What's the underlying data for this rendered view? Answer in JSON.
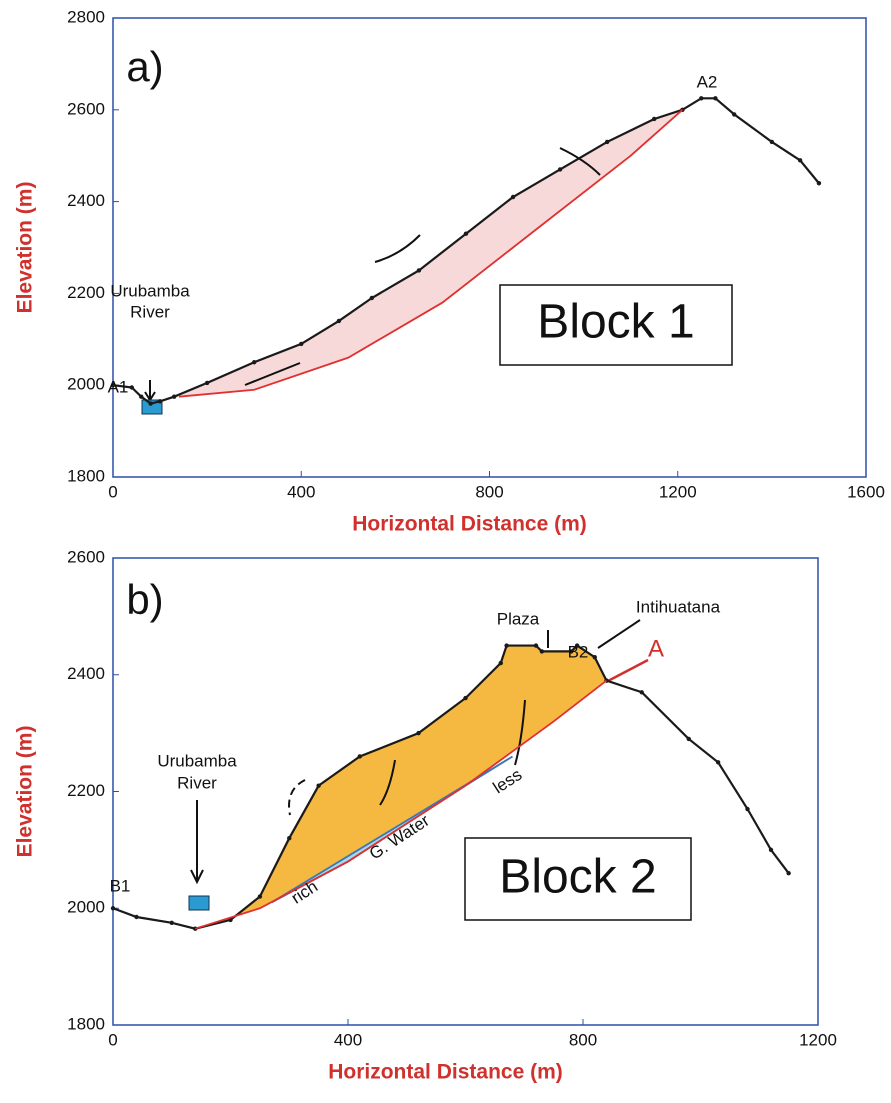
{
  "chart_data": [
    {
      "type": "line",
      "xlabel": "Horizontal Distance (m)",
      "ylabel": "Elevation (m)",
      "xlim": [
        0,
        1600
      ],
      "ylim": [
        1800,
        2800
      ],
      "xticks": [
        0,
        400,
        800,
        1200,
        1600
      ],
      "yticks": [
        1800,
        2000,
        2200,
        2400,
        2600,
        2800
      ],
      "fill_color": "#f7d9d9",
      "series": [
        {
          "color": "#1a1a1a",
          "x": [
            0,
            40,
            60,
            80,
            100,
            130,
            200,
            300,
            400,
            480,
            550,
            650,
            750,
            850,
            950,
            1050,
            1150,
            1210,
            1250,
            1280,
            1320,
            1400,
            1460,
            1500
          ],
          "values": [
            2000,
            1995,
            1975,
            1960,
            1965,
            1975,
            2005,
            2050,
            2090,
            2140,
            2190,
            2250,
            2330,
            2410,
            2470,
            2530,
            2580,
            2600,
            2625,
            2625,
            2590,
            2530,
            2490,
            2440
          ]
        },
        {
          "color": "#e03030",
          "x": [
            140,
            300,
            500,
            700,
            900,
            1100,
            1210
          ],
          "values": [
            1975,
            1990,
            2060,
            2180,
            2340,
            2500,
            2600
          ]
        }
      ],
      "annotations": [
        "a)",
        "A1",
        "A2",
        "Urubamba",
        "River",
        "Block 1"
      ]
    },
    {
      "type": "line",
      "xlabel": "Horizontal Distance (m)",
      "ylabel": "Elevation (m)",
      "xlim": [
        0,
        1200
      ],
      "ylim": [
        1800,
        2600
      ],
      "xticks": [
        0,
        400,
        800,
        1200
      ],
      "yticks": [
        1800,
        2000,
        2200,
        2400,
        2600
      ],
      "fill_color": "#f5b942",
      "series": [
        {
          "color": "#1a1a1a",
          "x": [
            0,
            40,
            100,
            140,
            200,
            250,
            300,
            350,
            420,
            520,
            600,
            660,
            670,
            720,
            730,
            780,
            790,
            820,
            840,
            900,
            980,
            1030,
            1080,
            1120,
            1150
          ],
          "values": [
            2000,
            1985,
            1975,
            1965,
            1980,
            2020,
            2120,
            2210,
            2260,
            2300,
            2360,
            2420,
            2450,
            2450,
            2440,
            2440,
            2450,
            2430,
            2390,
            2370,
            2290,
            2250,
            2170,
            2100,
            2060
          ]
        },
        {
          "color": "#e03030",
          "x": [
            140,
            250,
            400,
            600,
            750,
            840
          ],
          "values": [
            1965,
            2000,
            2080,
            2210,
            2320,
            2390
          ]
        },
        {
          "color": "#a8d8ec",
          "x": [
            270,
            680,
            600,
            400,
            270
          ],
          "values": [
            2010,
            2260,
            2210,
            2080,
            2010
          ]
        }
      ],
      "annotations": [
        "b)",
        "B1",
        "B2",
        "Plaza",
        "Intihuatana",
        "A",
        "Urubamba",
        "River",
        "Block 2",
        "rich",
        "G. Water",
        "less"
      ]
    }
  ]
}
